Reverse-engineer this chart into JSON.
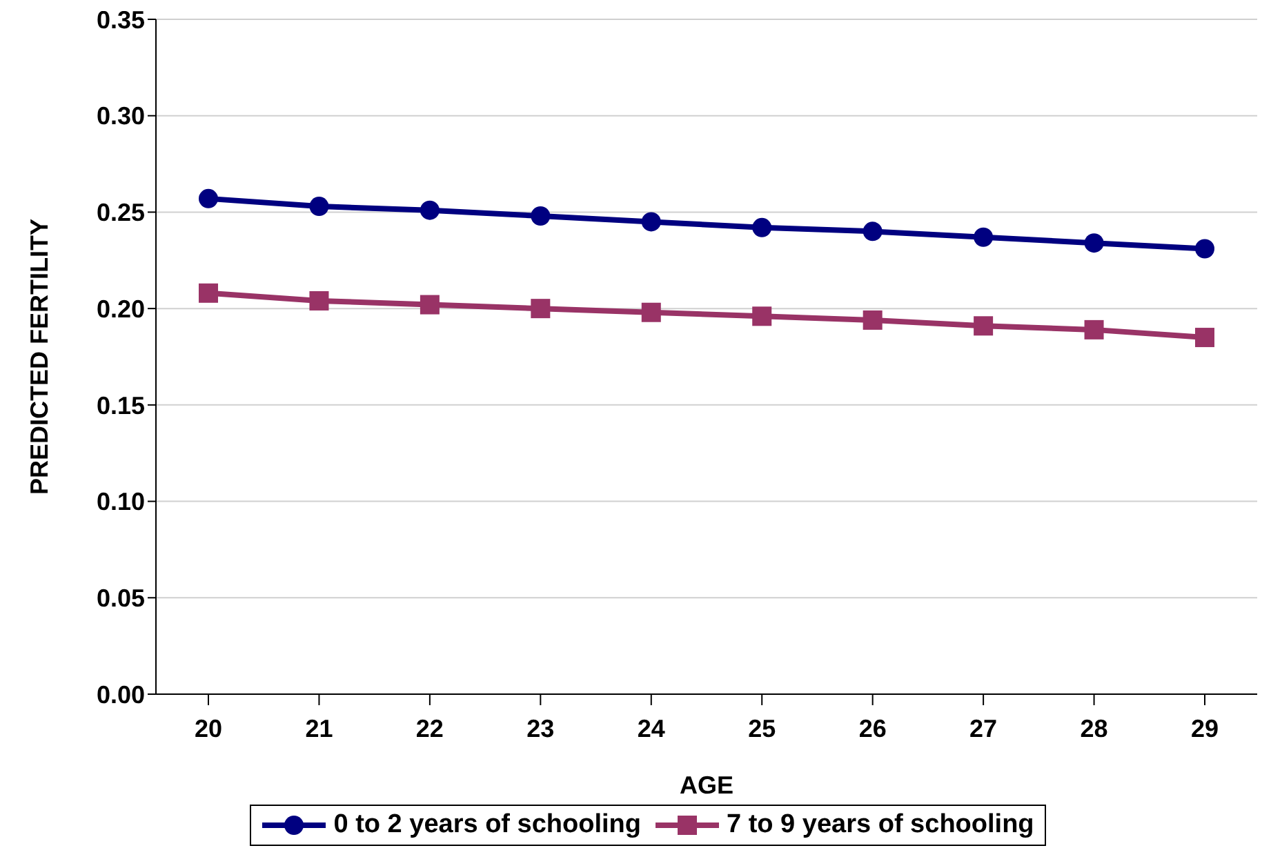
{
  "chart_data": {
    "type": "line",
    "xlabel": "AGE",
    "ylabel": "PREDICTED FERTILITY",
    "categories": [
      "20",
      "21",
      "22",
      "23",
      "24",
      "25",
      "26",
      "27",
      "28",
      "29"
    ],
    "series": [
      {
        "name": "0 to 2 years of schooling",
        "color": "#000080",
        "marker": "circle",
        "values": [
          0.257,
          0.253,
          0.251,
          0.248,
          0.245,
          0.242,
          0.24,
          0.237,
          0.234,
          0.231
        ]
      },
      {
        "name": "7 to 9 years of schooling",
        "color": "#993366",
        "marker": "square",
        "values": [
          0.208,
          0.204,
          0.202,
          0.2,
          0.198,
          0.196,
          0.194,
          0.191,
          0.189,
          0.185
        ]
      }
    ],
    "ylim": [
      0,
      0.35
    ],
    "yticks": [
      {
        "value": 0,
        "label": "0.00"
      },
      0.05,
      {
        "value": 0.1,
        "label": "0.10"
      },
      0.15,
      {
        "value": 0.2,
        "label": "0.20"
      },
      0.25,
      {
        "value": 0.3,
        "label": "0.30"
      },
      0.35
    ],
    "grid": "y",
    "legend": "bottom"
  }
}
